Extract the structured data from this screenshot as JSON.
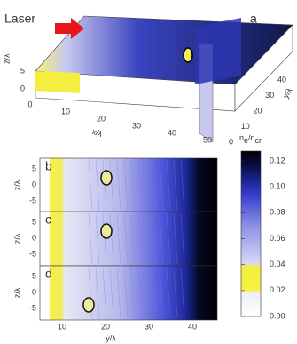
{
  "panel_a": {
    "label": "a",
    "laser": "Laser",
    "x_label": "x/λ",
    "x_ticks": [
      "0",
      "10",
      "20",
      "30",
      "40",
      "50"
    ],
    "y_label": "y/λ",
    "y_ticks": [
      "0",
      "10",
      "20",
      "30",
      "40"
    ],
    "z_label": "z/λ",
    "z_ticks": [
      "0",
      "5"
    ]
  },
  "panels": [
    {
      "label": "b",
      "z_label": "z/λ",
      "z_ticks": [
        "5",
        "0",
        "-5"
      ]
    },
    {
      "label": "c",
      "z_label": "z/λ",
      "z_ticks": [
        "5",
        "0",
        "-5"
      ]
    },
    {
      "label": "d",
      "z_label": "z/λ",
      "z_ticks": [
        "5",
        "0",
        "-5"
      ]
    }
  ],
  "bottom_axis": {
    "label": "y/λ",
    "ticks": [
      "10",
      "20",
      "30",
      "40"
    ]
  },
  "colorbar": {
    "label": [
      "n",
      "e",
      "/n",
      "cr"
    ],
    "ticks": [
      "0.12",
      "0.10",
      "0.08",
      "0.06",
      "0.04",
      "0.02",
      "0.00"
    ]
  }
}
